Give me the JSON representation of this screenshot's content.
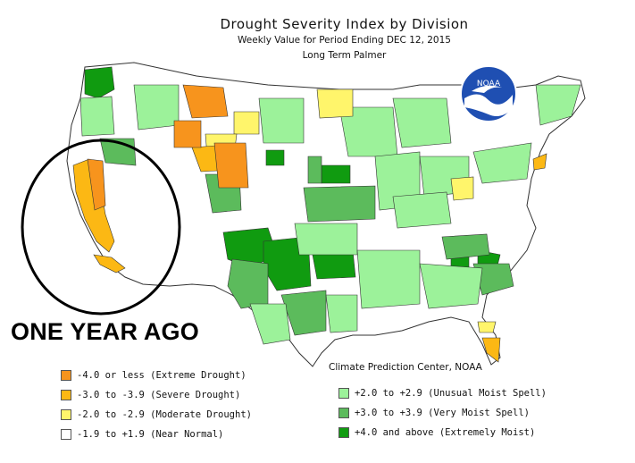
{
  "header": {
    "title": "Drought Severity Index by Division",
    "subtitle": "Weekly Value for Period Ending DEC 12, 2015",
    "index_name": "Long Term Palmer"
  },
  "logo": {
    "text": "NOAA"
  },
  "annotation": {
    "label": "ONE YEAR AGO"
  },
  "credit": "Climate Prediction Center, NOAA",
  "legend": {
    "left": [
      {
        "label": "-4.0 or less (Extreme Drought)",
        "color": "#f7941d"
      },
      {
        "label": "-3.0 to -3.9 (Severe Drought)",
        "color": "#fcb814"
      },
      {
        "label": "-2.0 to -2.9 (Moderate Drought)",
        "color": "#fff56b"
      },
      {
        "label": "-1.9 to +1.9 (Near Normal)",
        "color": "#ffffff"
      }
    ],
    "right": [
      {
        "label": "+2.0 to +2.9 (Unusual Moist Spell)",
        "color": "#9cf29a"
      },
      {
        "label": "+3.0 to +3.9 (Very Moist Spell)",
        "color": "#5cbb5c"
      },
      {
        "label": "+4.0 and above (Extremely Moist)",
        "color": "#109b10"
      }
    ]
  }
}
